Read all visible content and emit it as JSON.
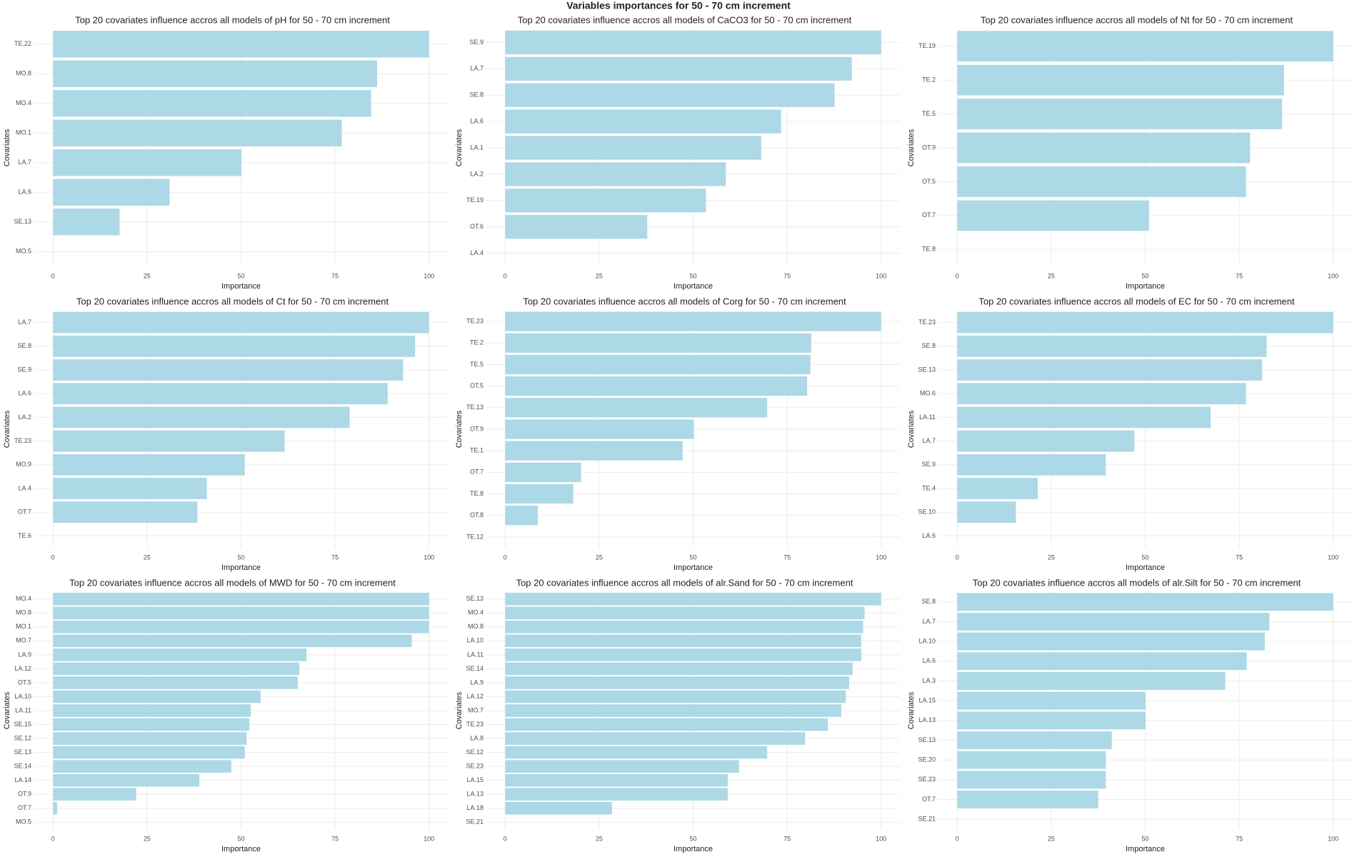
{
  "title": "Variables importances for 50 - 70 cm increment",
  "chart_data": [
    {
      "type": "barh",
      "title": "Top 20 covariates influence accros all models of pH for 50 - 70 cm increment",
      "x_label": "Importance",
      "y_label": "Covariates",
      "color": "#add8e6",
      "grid": true,
      "categories": [
        "TE.22",
        "MO.8",
        "MO.4",
        "MO.1",
        "LA.7",
        "LA.6",
        "SE.13",
        "MO.5"
      ],
      "values": [
        100,
        86.2,
        84.6,
        76.8,
        50.1,
        31,
        17.7,
        0
      ],
      "xlim": [
        -5,
        105
      ],
      "xticks": [
        0,
        25,
        50,
        75,
        100
      ]
    },
    {
      "type": "barh",
      "title": "Top 20 covariates influence accros all models of CaCO3 for 50 - 70 cm increment",
      "x_label": "Importance",
      "y_label": "Covariates",
      "color": "#add8e6",
      "grid": true,
      "categories": [
        "SE.9",
        "LA.7",
        "SE.8",
        "LA.6",
        "LA.1",
        "LA.2",
        "TE.19",
        "OT.6",
        "LA.4"
      ],
      "values": [
        100,
        92.2,
        87.6,
        73.4,
        68.1,
        58.7,
        53.4,
        37.8,
        0
      ],
      "xlim": [
        -5,
        105
      ],
      "xticks": [
        0,
        25,
        50,
        75,
        100
      ]
    },
    {
      "type": "barh",
      "title": "Top 20 covariates influence accros all models of Nt for 50 - 70 cm increment",
      "x_label": "Importance",
      "y_label": "Covariates",
      "color": "#add8e6",
      "grid": true,
      "categories": [
        "TE.19",
        "TE.2",
        "TE.5",
        "OT.9",
        "OT.5",
        "OT.7",
        "TE.8"
      ],
      "values": [
        100,
        86.9,
        86.4,
        77.9,
        76.8,
        51,
        0
      ],
      "xlim": [
        -5,
        105
      ],
      "xticks": [
        0,
        25,
        50,
        75,
        100
      ]
    },
    {
      "type": "barh",
      "title": "Top 20 covariates influence accros all models of Ct for 50 - 70 cm increment",
      "x_label": "Importance",
      "y_label": "Covariates",
      "color": "#add8e6",
      "grid": true,
      "categories": [
        "LA.7",
        "SE.8",
        "SE.9",
        "LA.6",
        "LA.2",
        "TE.23",
        "MO.9",
        "LA.4",
        "OT.7",
        "TE.6"
      ],
      "values": [
        100,
        96.3,
        93.1,
        89,
        78.9,
        61.6,
        51,
        40.9,
        38.4,
        0
      ],
      "xlim": [
        -5,
        105
      ],
      "xticks": [
        0,
        25,
        50,
        75,
        100
      ]
    },
    {
      "type": "barh",
      "title": "Top 20 covariates influence accros all models of Corg for 50 - 70 cm increment",
      "x_label": "Importance",
      "y_label": "Covariates",
      "color": "#add8e6",
      "grid": true,
      "categories": [
        "TE.23",
        "TE.2",
        "TE.5",
        "OT.5",
        "TE.13",
        "OT.9",
        "TE.1",
        "OT.7",
        "TE.8",
        "OT.8",
        "TE.12"
      ],
      "values": [
        100,
        81.4,
        81.2,
        80.3,
        69.7,
        50.2,
        47.2,
        20.2,
        18.1,
        8.7,
        0
      ],
      "xlim": [
        -5,
        105
      ],
      "xticks": [
        0,
        25,
        50,
        75,
        100
      ]
    },
    {
      "type": "barh",
      "title": "Top 20 covariates influence accros all models of EC for 50 - 70 cm increment",
      "x_label": "Importance",
      "y_label": "Covariates",
      "color": "#add8e6",
      "grid": true,
      "categories": [
        "TE.23",
        "SE.8",
        "SE.13",
        "MO.6",
        "LA.11",
        "LA.7",
        "SE.9",
        "TE.4",
        "SE.10",
        "LA.6"
      ],
      "values": [
        100,
        82.3,
        81.1,
        76.8,
        67.4,
        47.1,
        39.5,
        21.4,
        15.6,
        0
      ],
      "xlim": [
        -5,
        105
      ],
      "xticks": [
        0,
        25,
        50,
        75,
        100
      ]
    },
    {
      "type": "barh",
      "title": "Top 20 covariates influence accros all models of MWD for 50 - 70 cm increment",
      "x_label": "Importance",
      "y_label": "Covariates",
      "color": "#add8e6",
      "grid": true,
      "categories": [
        "MO.4",
        "MO.8",
        "MO.1",
        "MO.7",
        "LA.9",
        "LA.12",
        "OT.5",
        "LA.10",
        "LA.11",
        "SE.15",
        "SE.12",
        "SE.13",
        "SE.14",
        "LA.14",
        "OT.9",
        "OT.7",
        "MO.5"
      ],
      "values": [
        100,
        100,
        100,
        95.4,
        67.4,
        65.5,
        65.1,
        55.2,
        52.6,
        52.2,
        51.5,
        51,
        47.4,
        38.9,
        22.1,
        1.1,
        0
      ],
      "xlim": [
        -5,
        105
      ],
      "xticks": [
        0,
        25,
        50,
        75,
        100
      ]
    },
    {
      "type": "barh",
      "title": "Top 20 covariates influence accros all models of alr.Sand for 50 - 70 cm increment",
      "x_label": "Importance",
      "y_label": "Covariates",
      "color": "#add8e6",
      "grid": true,
      "categories": [
        "SE.13",
        "MO.4",
        "MO.8",
        "LA.10",
        "LA.11",
        "SE.14",
        "LA.9",
        "LA.12",
        "MO.7",
        "TE.23",
        "LA.8",
        "SE.12",
        "SE.23",
        "LA.15",
        "LA.13",
        "LA.18",
        "SE.21"
      ],
      "values": [
        100,
        95.6,
        95.2,
        94.7,
        94.7,
        92.4,
        91.5,
        90.6,
        89.4,
        85.8,
        79.8,
        69.7,
        62.2,
        59.2,
        59.2,
        28.4,
        0
      ],
      "xlim": [
        -5,
        105
      ],
      "xticks": [
        0,
        25,
        50,
        75,
        100
      ]
    },
    {
      "type": "barh",
      "title": "Top 20 covariates influence accros all models of alr.Silt for 50 - 70 cm increment",
      "x_label": "Importance",
      "y_label": "Covariates",
      "color": "#add8e6",
      "grid": true,
      "categories": [
        "SE.8",
        "LA.7",
        "LA.10",
        "LA.6",
        "LA.3",
        "LA.15",
        "LA.13",
        "SE.13",
        "SE.20",
        "SE.23",
        "OT.7",
        "SE.21"
      ],
      "values": [
        100,
        83,
        81.8,
        77,
        71.3,
        50.1,
        50.1,
        41.1,
        39.5,
        39.5,
        37.5,
        0
      ],
      "xlim": [
        -5,
        105
      ],
      "xticks": [
        0,
        25,
        50,
        75,
        100
      ]
    }
  ]
}
